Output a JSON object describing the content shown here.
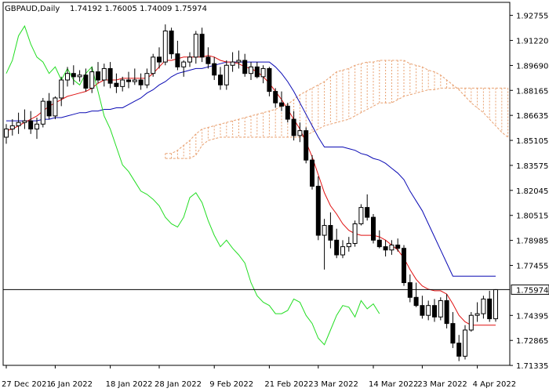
{
  "header": {
    "symbol": "GBPAUD,Daily",
    "ohlc": "1.74192 1.76005 1.74009 1.75974"
  },
  "current_price_label": "1.75974",
  "colors": {
    "background": "#ffffff",
    "frame": "#000000",
    "bull_body": "#ffffff",
    "bear_body": "#000000",
    "tenkan": "#e01010",
    "kijun": "#0a0ab4",
    "chikou": "#22dd22",
    "kumo": "#e8a070",
    "price_line": "#000000"
  },
  "chart_data": {
    "type": "candlestick",
    "title": "GBPAUD,Daily",
    "indicator": "Ichimoku Kinko Hyo",
    "ylim": [
      1.7134,
      1.9355
    ],
    "y_ticks": [
      "1.92755",
      "1.91220",
      "1.89690",
      "1.88165",
      "1.86635",
      "1.85105",
      "1.83575",
      "1.82045",
      "1.80515",
      "1.78985",
      "1.77455",
      "1.75974",
      "1.74395",
      "1.72865",
      "1.71335"
    ],
    "x_ticks": [
      "27 Dec 2021",
      "6 Jan 2022",
      "18 Jan 2022",
      "28 Jan 2022",
      "9 Feb 2022",
      "21 Feb 2022",
      "3 Mar 2022",
      "14 Mar 2022",
      "23 Mar 2022",
      "4 Apr 2022"
    ],
    "last_close": 1.75974,
    "candles": [
      [
        1.853,
        1.861,
        1.849,
        1.858
      ],
      [
        1.858,
        1.864,
        1.854,
        1.86
      ],
      [
        1.86,
        1.868,
        1.855,
        1.862
      ],
      [
        1.862,
        1.87,
        1.858,
        1.863
      ],
      [
        1.863,
        1.869,
        1.855,
        1.858
      ],
      [
        1.858,
        1.865,
        1.852,
        1.861
      ],
      [
        1.861,
        1.877,
        1.859,
        1.875
      ],
      [
        1.875,
        1.88,
        1.864,
        1.866
      ],
      [
        1.866,
        1.878,
        1.864,
        1.877
      ],
      [
        1.877,
        1.89,
        1.872,
        1.888
      ],
      [
        1.888,
        1.896,
        1.884,
        1.892
      ],
      [
        1.892,
        1.897,
        1.885,
        1.89
      ],
      [
        1.89,
        1.894,
        1.887,
        1.891
      ],
      [
        1.891,
        1.895,
        1.881,
        1.883
      ],
      [
        1.883,
        1.896,
        1.88,
        1.893
      ],
      [
        1.893,
        1.899,
        1.886,
        1.888
      ],
      [
        1.888,
        1.898,
        1.884,
        1.895
      ],
      [
        1.895,
        1.899,
        1.883,
        1.886
      ],
      [
        1.886,
        1.892,
        1.88,
        1.884
      ],
      [
        1.884,
        1.89,
        1.881,
        1.888
      ],
      [
        1.888,
        1.893,
        1.883,
        1.887
      ],
      [
        1.887,
        1.895,
        1.885,
        1.888
      ],
      [
        1.888,
        1.892,
        1.882,
        1.885
      ],
      [
        1.885,
        1.895,
        1.883,
        1.892
      ],
      [
        1.892,
        1.904,
        1.89,
        1.902
      ],
      [
        1.902,
        1.908,
        1.895,
        1.899
      ],
      [
        1.899,
        1.922,
        1.897,
        1.918
      ],
      [
        1.918,
        1.92,
        1.901,
        1.904
      ],
      [
        1.904,
        1.912,
        1.894,
        1.896
      ],
      [
        1.896,
        1.9,
        1.89,
        1.899
      ],
      [
        1.899,
        1.905,
        1.896,
        1.902
      ],
      [
        1.902,
        1.918,
        1.898,
        1.916
      ],
      [
        1.916,
        1.92,
        1.899,
        1.902
      ],
      [
        1.902,
        1.908,
        1.895,
        1.898
      ],
      [
        1.898,
        1.902,
        1.888,
        1.891
      ],
      [
        1.891,
        1.896,
        1.882,
        1.885
      ],
      [
        1.885,
        1.9,
        1.882,
        1.897
      ],
      [
        1.897,
        1.905,
        1.893,
        1.899
      ],
      [
        1.899,
        1.906,
        1.895,
        1.9
      ],
      [
        1.9,
        1.904,
        1.89,
        1.892
      ],
      [
        1.892,
        1.899,
        1.888,
        1.896
      ],
      [
        1.896,
        1.899,
        1.889,
        1.89
      ],
      [
        1.89,
        1.897,
        1.886,
        1.895
      ],
      [
        1.895,
        1.896,
        1.878,
        1.881
      ],
      [
        1.881,
        1.883,
        1.871,
        1.874
      ],
      [
        1.874,
        1.881,
        1.869,
        1.872
      ],
      [
        1.872,
        1.874,
        1.862,
        1.864
      ],
      [
        1.864,
        1.869,
        1.851,
        1.854
      ],
      [
        1.854,
        1.862,
        1.85,
        1.857
      ],
      [
        1.857,
        1.859,
        1.837,
        1.839
      ],
      [
        1.839,
        1.842,
        1.821,
        1.823
      ],
      [
        1.823,
        1.829,
        1.79,
        1.793
      ],
      [
        1.793,
        1.803,
        1.772,
        1.799
      ],
      [
        1.799,
        1.807,
        1.785,
        1.79
      ],
      [
        1.79,
        1.797,
        1.779,
        1.781
      ],
      [
        1.781,
        1.79,
        1.779,
        1.786
      ],
      [
        1.786,
        1.792,
        1.783,
        1.788
      ],
      [
        1.788,
        1.802,
        1.786,
        1.8
      ],
      [
        1.8,
        1.812,
        1.799,
        1.81
      ],
      [
        1.81,
        1.818,
        1.802,
        1.804
      ],
      [
        1.804,
        1.806,
        1.788,
        1.79
      ],
      [
        1.79,
        1.796,
        1.785,
        1.786
      ],
      [
        1.786,
        1.79,
        1.78,
        1.784
      ],
      [
        1.784,
        1.79,
        1.781,
        1.787
      ],
      [
        1.787,
        1.791,
        1.783,
        1.785
      ],
      [
        1.785,
        1.787,
        1.762,
        1.764
      ],
      [
        1.764,
        1.769,
        1.752,
        1.755
      ],
      [
        1.755,
        1.764,
        1.749,
        1.75
      ],
      [
        1.75,
        1.756,
        1.742,
        1.744
      ],
      [
        1.744,
        1.753,
        1.741,
        1.75
      ],
      [
        1.75,
        1.754,
        1.74,
        1.743
      ],
      [
        1.743,
        1.755,
        1.741,
        1.753
      ],
      [
        1.753,
        1.757,
        1.736,
        1.739
      ],
      [
        1.739,
        1.746,
        1.724,
        1.727
      ],
      [
        1.727,
        1.732,
        1.716,
        1.719
      ],
      [
        1.719,
        1.738,
        1.717,
        1.735
      ],
      [
        1.735,
        1.746,
        1.734,
        1.744
      ],
      [
        1.744,
        1.752,
        1.74,
        1.745
      ],
      [
        1.745,
        1.756,
        1.742,
        1.754
      ],
      [
        1.754,
        1.759,
        1.74,
        1.7419
      ],
      [
        1.7419,
        1.76,
        1.7401,
        1.7597
      ]
    ],
    "tenkan": [
      1.857,
      1.858,
      1.86,
      1.862,
      1.864,
      1.866,
      1.869,
      1.872,
      1.874,
      1.876,
      1.878,
      1.879,
      1.88,
      1.881,
      1.883,
      1.886,
      1.888,
      1.888,
      1.888,
      1.889,
      1.889,
      1.889,
      1.889,
      1.889,
      1.892,
      1.896,
      1.9,
      1.9,
      1.901,
      1.902,
      1.902,
      1.902,
      1.902,
      1.903,
      1.902,
      1.9,
      1.899,
      1.899,
      1.898,
      1.896,
      1.895,
      1.893,
      1.89,
      1.886,
      1.881,
      1.876,
      1.87,
      1.864,
      1.858,
      1.85,
      1.841,
      1.83,
      1.819,
      1.811,
      1.806,
      1.8,
      1.796,
      1.794,
      1.793,
      1.793,
      1.793,
      1.792,
      1.79,
      1.787,
      1.784,
      1.779,
      1.772,
      1.766,
      1.762,
      1.76,
      1.759,
      1.759,
      1.757,
      1.751,
      1.744,
      1.74,
      1.738,
      1.738,
      1.738,
      1.738,
      1.738
    ],
    "kijun": [
      1.863,
      1.863,
      1.863,
      1.863,
      1.863,
      1.863,
      1.864,
      1.864,
      1.865,
      1.865,
      1.866,
      1.867,
      1.868,
      1.868,
      1.869,
      1.869,
      1.87,
      1.87,
      1.871,
      1.871,
      1.873,
      1.875,
      1.877,
      1.88,
      1.882,
      1.885,
      1.887,
      1.89,
      1.892,
      1.893,
      1.894,
      1.895,
      1.895,
      1.896,
      1.897,
      1.898,
      1.899,
      1.899,
      1.899,
      1.899,
      1.899,
      1.899,
      1.899,
      1.899,
      1.896,
      1.892,
      1.887,
      1.881,
      1.874,
      1.867,
      1.86,
      1.853,
      1.847,
      1.847,
      1.847,
      1.847,
      1.846,
      1.845,
      1.843,
      1.842,
      1.84,
      1.839,
      1.837,
      1.834,
      1.831,
      1.827,
      1.82,
      1.814,
      1.808,
      1.8,
      1.792,
      1.784,
      1.776,
      1.768,
      1.768,
      1.768,
      1.768,
      1.768,
      1.768,
      1.768,
      1.768
    ],
    "chikou_offset_bars": -26,
    "chikou": [
      1.892,
      1.9,
      1.915,
      1.921,
      1.91,
      1.902,
      1.899,
      1.892,
      1.896,
      1.888,
      1.895,
      1.888,
      1.885,
      1.892,
      1.896,
      1.881,
      1.866,
      1.858,
      1.847,
      1.836,
      1.832,
      1.826,
      1.82,
      1.818,
      1.815,
      1.811,
      1.804,
      1.8,
      1.798,
      1.804,
      1.816,
      1.819,
      1.813,
      1.802,
      1.793,
      1.786,
      1.79,
      1.785,
      1.781,
      1.776,
      1.764,
      1.756,
      1.752,
      1.75,
      1.745,
      1.745,
      1.747,
      1.754,
      1.752,
      1.744,
      1.739,
      1.73,
      1.726,
      1.735,
      1.744,
      1.75,
      1.749,
      1.743,
      1.753,
      1.748,
      1.751,
      1.745
    ],
    "kumo_offset_bars": 26,
    "span_a": [
      1.843,
      1.843,
      1.845,
      1.848,
      1.851,
      1.855,
      1.858,
      1.859,
      1.86,
      1.861,
      1.862,
      1.863,
      1.864,
      1.865,
      1.866,
      1.867,
      1.868,
      1.869,
      1.87,
      1.872,
      1.873,
      1.876,
      1.879,
      1.881,
      1.883,
      1.885,
      1.887,
      1.89,
      1.893,
      1.894,
      1.895,
      1.897,
      1.898,
      1.899,
      1.899,
      1.9,
      1.9,
      1.9,
      1.9,
      1.9,
      1.898,
      1.897,
      1.896,
      1.894,
      1.893,
      1.891,
      1.888,
      1.885,
      1.882,
      1.878,
      1.874,
      1.871,
      1.868,
      1.864,
      1.86,
      1.856,
      1.853,
      1.849,
      1.847,
      1.847,
      1.847,
      1.847,
      1.846,
      1.845,
      1.844,
      1.843,
      1.842,
      1.841,
      1.84,
      1.838,
      1.836,
      1.834,
      1.831,
      1.828,
      1.826,
      1.825,
      1.824
    ],
    "span_b": [
      1.84,
      1.84,
      1.84,
      1.84,
      1.84,
      1.842,
      1.848,
      1.851,
      1.852,
      1.853,
      1.853,
      1.853,
      1.853,
      1.853,
      1.853,
      1.853,
      1.853,
      1.853,
      1.853,
      1.853,
      1.853,
      1.853,
      1.853,
      1.854,
      1.856,
      1.858,
      1.86,
      1.861,
      1.862,
      1.863,
      1.864,
      1.866,
      1.868,
      1.87,
      1.872,
      1.874,
      1.874,
      1.874,
      1.876,
      1.878,
      1.879,
      1.88,
      1.881,
      1.882,
      1.882,
      1.883,
      1.883,
      1.883,
      1.883,
      1.883,
      1.883,
      1.883,
      1.883,
      1.883,
      1.883,
      1.883,
      1.883,
      1.883,
      1.883,
      1.883,
      1.883,
      1.883,
      1.883,
      1.883,
      1.883,
      1.883,
      1.883,
      1.883,
      1.883,
      1.883,
      1.849,
      1.849,
      1.849,
      1.849,
      1.849,
      1.849,
      1.849
    ]
  }
}
